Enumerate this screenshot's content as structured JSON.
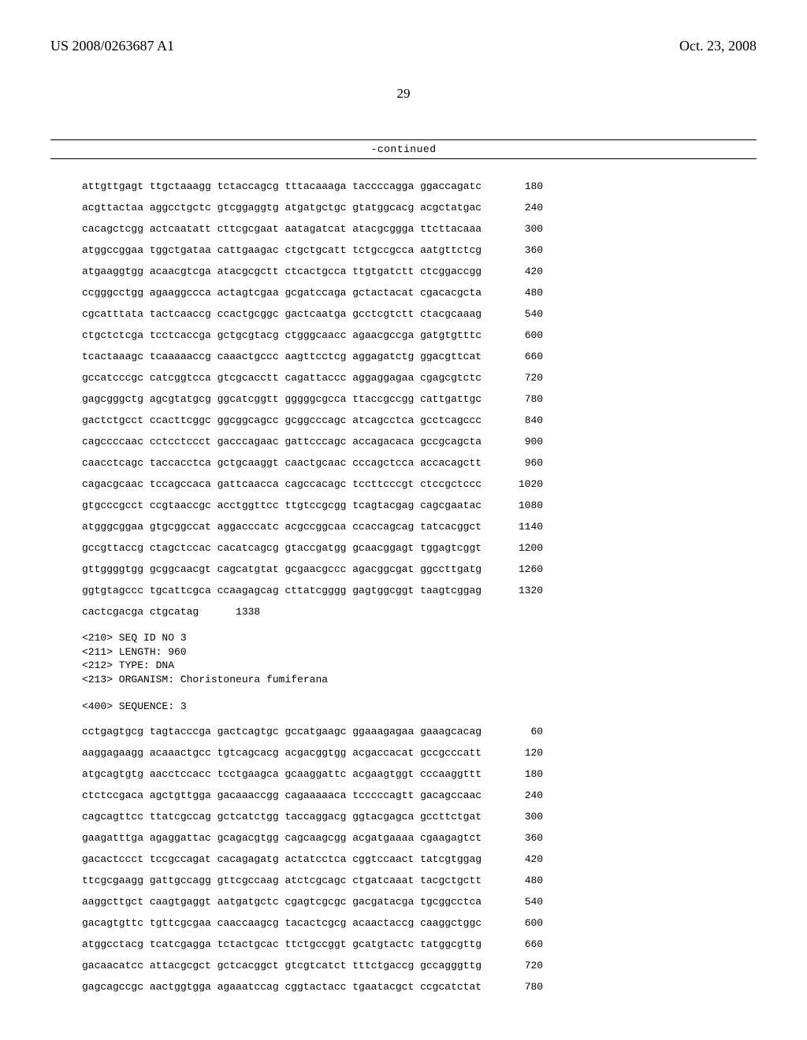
{
  "header": {
    "pub_number": "US 2008/0263687 A1",
    "pub_date": "Oct. 23, 2008"
  },
  "page_number": "29",
  "continued_label": "-continued",
  "sequence1": {
    "rows": [
      {
        "text": "attgttgagt ttgctaaagg tctaccagcg tttacaaaga taccccagga ggaccagatc",
        "num": "180"
      },
      {
        "text": "acgttactaa aggcctgctc gtcggaggtg atgatgctgc gtatggcacg acgctatgac",
        "num": "240"
      },
      {
        "text": "cacagctcgg actcaatatt cttcgcgaat aatagatcat atacgcggga ttcttacaaa",
        "num": "300"
      },
      {
        "text": "atggccggaa tggctgataa cattgaagac ctgctgcatt tctgccgcca aatgttctcg",
        "num": "360"
      },
      {
        "text": "atgaaggtgg acaacgtcga atacgcgctt ctcactgcca ttgtgatctt ctcggaccgg",
        "num": "420"
      },
      {
        "text": "ccgggcctgg agaaggccca actagtcgaa gcgatccaga gctactacat cgacacgcta",
        "num": "480"
      },
      {
        "text": "cgcatttata tactcaaccg ccactgcggc gactcaatga gcctcgtctt ctacgcaaag",
        "num": "540"
      },
      {
        "text": "ctgctctcga tcctcaccga gctgcgtacg ctgggcaacc agaacgccga gatgtgtttc",
        "num": "600"
      },
      {
        "text": "tcactaaagc tcaaaaaccg caaactgccc aagttcctcg aggagatctg ggacgttcat",
        "num": "660"
      },
      {
        "text": "gccatcccgc catcggtcca gtcgcacctt cagattaccc aggaggagaa cgagcgtctc",
        "num": "720"
      },
      {
        "text": "gagcgggctg agcgtatgcg ggcatcggtt gggggcgcca ttaccgccgg cattgattgc",
        "num": "780"
      },
      {
        "text": "gactctgcct ccacttcggc ggcggcagcc gcggcccagc atcagcctca gcctcagccc",
        "num": "840"
      },
      {
        "text": "cagccccaac cctcctccct gacccagaac gattcccagc accagacaca gccgcagcta",
        "num": "900"
      },
      {
        "text": "caacctcagc taccacctca gctgcaaggt caactgcaac cccagctcca accacagctt",
        "num": "960"
      },
      {
        "text": "cagacgcaac tccagccaca gattcaacca cagccacagc tccttcccgt ctccgctccc",
        "num": "1020"
      },
      {
        "text": "gtgcccgcct ccgtaaccgc acctggttcc ttgtccgcgg tcagtacgag cagcgaatac",
        "num": "1080"
      },
      {
        "text": "atgggcggaa gtgcggccat aggacccatc acgccggcaa ccaccagcag tatcacggct",
        "num": "1140"
      },
      {
        "text": "gccgttaccg ctagctccac cacatcagcg gtaccgatgg gcaacggagt tggagtcggt",
        "num": "1200"
      },
      {
        "text": "gttggggtgg gcggcaacgt cagcatgtat gcgaacgccc agacggcgat ggccttgatg",
        "num": "1260"
      },
      {
        "text": "ggtgtagccc tgcattcgca ccaagagcag cttatcgggg gagtggcggt taagtcggag",
        "num": "1320"
      },
      {
        "text": "cactcgacga ctgcatag",
        "num": "1338"
      }
    ]
  },
  "meta": {
    "seq_id": "<210> SEQ ID NO 3",
    "length": "<211> LENGTH: 960",
    "type": "<212> TYPE: DNA",
    "organism": "<213> ORGANISM: Choristoneura fumiferana"
  },
  "sequence_label": "<400> SEQUENCE: 3",
  "sequence2": {
    "rows": [
      {
        "text": "cctgagtgcg tagtacccga gactcagtgc gccatgaagc ggaaagagaa gaaagcacag",
        "num": "60"
      },
      {
        "text": "aaggagaagg acaaactgcc tgtcagcacg acgacggtgg acgaccacat gccgcccatt",
        "num": "120"
      },
      {
        "text": "atgcagtgtg aacctccacc tcctgaagca gcaaggattc acgaagtggt cccaaggttt",
        "num": "180"
      },
      {
        "text": "ctctccgaca agctgttgga gacaaaccgg cagaaaaaca tcccccagtt gacagccaac",
        "num": "240"
      },
      {
        "text": "cagcagttcc ttatcgccag gctcatctgg taccaggacg ggtacgagca gccttctgat",
        "num": "300"
      },
      {
        "text": "gaagatttga agaggattac gcagacgtgg cagcaagcgg acgatgaaaa cgaagagtct",
        "num": "360"
      },
      {
        "text": "gacactccct tccgccagat cacagagatg actatcctca cggtccaact tatcgtggag",
        "num": "420"
      },
      {
        "text": "ttcgcgaagg gattgccagg gttcgccaag atctcgcagc ctgatcaaat tacgctgctt",
        "num": "480"
      },
      {
        "text": "aaggcttgct caagtgaggt aatgatgctc cgagtcgcgc gacgatacga tgcggcctca",
        "num": "540"
      },
      {
        "text": "gacagtgttc tgttcgcgaa caaccaagcg tacactcgcg acaactaccg caaggctggc",
        "num": "600"
      },
      {
        "text": "atggcctacg tcatcgagga tctactgcac ttctgccggt gcatgtactc tatggcgttg",
        "num": "660"
      },
      {
        "text": "gacaacatcc attacgcgct gctcacggct gtcgtcatct tttctgaccg gccagggttg",
        "num": "720"
      },
      {
        "text": "gagcagccgc aactggtgga agaaatccag cggtactacc tgaatacgct ccgcatctat",
        "num": "780"
      }
    ]
  }
}
